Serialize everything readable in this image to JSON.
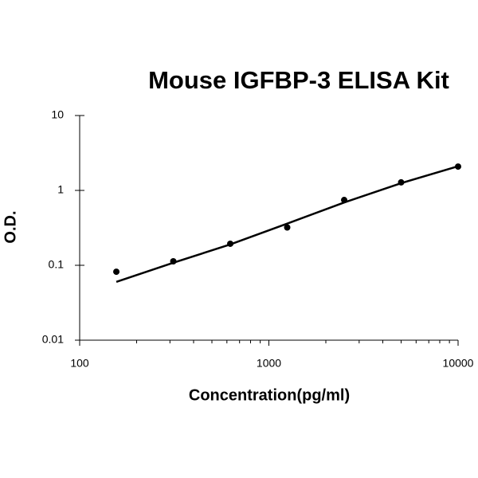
{
  "chart_data": {
    "type": "scatter",
    "title": "Mouse IGFBP-3 ELISA Kit",
    "x_label": "Concentration(pg/ml)",
    "y_label": "O.D.",
    "x": [
      156.25,
      312.5,
      625,
      1250,
      2500,
      5000,
      10000
    ],
    "values": [
      0.082,
      0.113,
      0.194,
      0.32,
      0.745,
      1.28,
      2.08
    ],
    "color": "#000000",
    "fit": {
      "x": [
        156.25,
        312.5,
        625,
        1250,
        2500,
        5000,
        10000
      ],
      "values": [
        0.06,
        0.108,
        0.19,
        0.36,
        0.69,
        1.25,
        2.1
      ]
    },
    "xscale": "log",
    "yscale": "log",
    "xlim": [
      100,
      10000
    ],
    "ylim": [
      0.01,
      10
    ],
    "xticks": [
      100,
      1000,
      10000
    ],
    "xminorticks": [
      200,
      300,
      400,
      500,
      600,
      700,
      800,
      900,
      2000,
      3000,
      4000,
      5000,
      6000,
      7000,
      8000,
      9000
    ],
    "yticks": [
      0.01,
      0.1,
      1,
      10
    ],
    "grid": false
  }
}
